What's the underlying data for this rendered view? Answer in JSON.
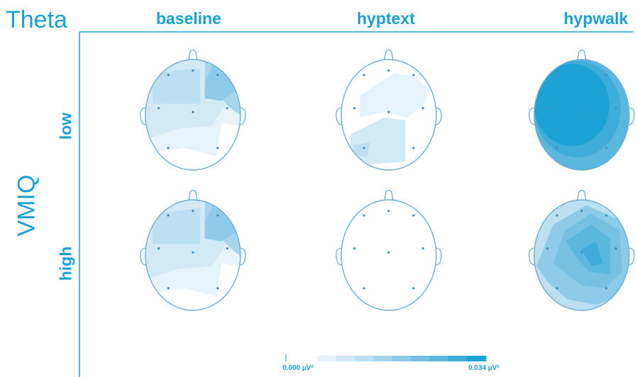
{
  "title": "Theta",
  "y_axis_label": "VMIQ",
  "columns": [
    "baseline",
    "hyptext",
    "hypwalk"
  ],
  "rows": [
    "low",
    "high"
  ],
  "colorbar": {
    "min_label": "0.000 µV²",
    "max_label": "0.034 µV²",
    "min_value": 0.0,
    "max_value": 0.034,
    "colors": [
      "#ffffff",
      "#e7f3fa",
      "#d2e9f6",
      "#bcdff1",
      "#a6d5ec",
      "#8ecbe8",
      "#76c1e3",
      "#5cb7df",
      "#40acda",
      "#1da2d5"
    ]
  },
  "colors": {
    "accent": "#1aa0d2",
    "outline": "#6aaed3",
    "electrode": "#3a8fc0"
  },
  "maps": [
    {
      "row": "low",
      "column": "baseline",
      "pattern": "baseline",
      "level": 0.35
    },
    {
      "row": "low",
      "column": "hyptext",
      "pattern": "hyptext-low",
      "level": 0.15
    },
    {
      "row": "low",
      "column": "hypwalk",
      "pattern": "hypwalk-low",
      "level": 0.9
    },
    {
      "row": "high",
      "column": "baseline",
      "pattern": "baseline",
      "level": 0.35
    },
    {
      "row": "high",
      "column": "hyptext",
      "pattern": "empty",
      "level": 0.0
    },
    {
      "row": "high",
      "column": "hypwalk",
      "pattern": "hypwalk-high",
      "level": 0.7
    }
  ]
}
